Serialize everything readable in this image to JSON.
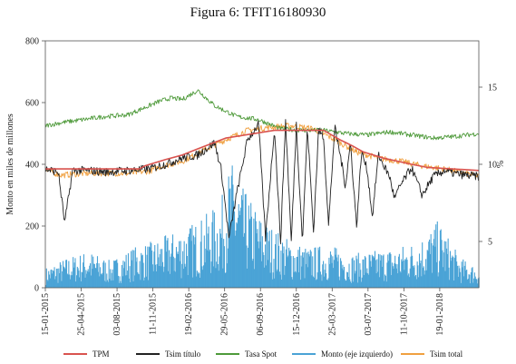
{
  "chart_data": {
    "type": "line",
    "title": "Figura 6: TFIT16180930",
    "ylabel_left": "Monto en miles de millones",
    "ylabel_right": "%",
    "ylim_left": [
      0,
      800
    ],
    "ylim_right": [
      2,
      18
    ],
    "yticks_left": [
      0,
      200,
      400,
      600,
      800
    ],
    "yticks_right": [
      5,
      10,
      15
    ],
    "x_tick_labels": [
      "15-01-2015",
      "25-04-2015",
      "03-08-2015",
      "11-11-2015",
      "19-02-2016",
      "29-05-2016",
      "06-09-2016",
      "15-12-2016",
      "25-03-2017",
      "03-07-2017",
      "11-10-2017",
      "19-01-2018"
    ],
    "x_range": [
      "15-01-2015",
      "08-05-2018"
    ],
    "legend_position": "bottom",
    "series": [
      {
        "name": "TPM",
        "axis": "right",
        "color": "#d9534f",
        "x": [
          "15-01-2015",
          "04-10-2015",
          "20-10-2015",
          "15-12-2015",
          "01-02-2016",
          "15-03-2016",
          "01-06-2016",
          "15-10-2016",
          "01-03-2017",
          "15-04-2017",
          "20-05-2017",
          "20-06-2017",
          "15-08-2017",
          "01-11-2017",
          "15-12-2017",
          "08-05-2018"
        ],
        "values": [
          9.7,
          9.7,
          9.9,
          10.3,
          10.6,
          11.0,
          11.7,
          12.2,
          12.2,
          11.6,
          11.2,
          10.8,
          10.4,
          10.0,
          9.8,
          9.6
        ]
      },
      {
        "name": "Tsim título",
        "axis": "left",
        "color": "#222222",
        "x": [
          "15-01-2015",
          "20-02-2015",
          "10-03-2015",
          "01-04-2015",
          "15-05-2015",
          "01-07-2015",
          "01-09-2015",
          "01-11-2015",
          "15-12-2015",
          "01-02-2016",
          "15-03-2016",
          "01-05-2016",
          "20-05-2016",
          "10-06-2016",
          "01-07-2016",
          "01-08-2016",
          "01-09-2016",
          "20-09-2016",
          "15-10-2016",
          "01-11-2016",
          "15-11-2016",
          "01-12-2016",
          "15-12-2016",
          "01-01-2017",
          "15-01-2017",
          "01-02-2017",
          "15-02-2017",
          "01-03-2017",
          "15-03-2017",
          "01-04-2017",
          "15-04-2017",
          "01-05-2017",
          "15-05-2017",
          "01-06-2017",
          "15-06-2017",
          "01-07-2017",
          "15-07-2017",
          "01-08-2017",
          "01-09-2017",
          "15-09-2017",
          "01-10-2017",
          "01-11-2017",
          "01-12-2017",
          "01-01-2018",
          "01-02-2018",
          "01-03-2018",
          "01-04-2018",
          "08-05-2018"
        ],
        "values": [
          385,
          375,
          210,
          380,
          380,
          375,
          380,
          385,
          400,
          420,
          430,
          470,
          380,
          160,
          300,
          480,
          530,
          160,
          520,
          150,
          540,
          150,
          530,
          150,
          520,
          180,
          510,
          490,
          200,
          520,
          440,
          330,
          470,
          200,
          440,
          380,
          230,
          430,
          360,
          290,
          330,
          390,
          300,
          360,
          380,
          370,
          365,
          360
        ]
      },
      {
        "name": "Tasa Spot",
        "axis": "right",
        "color": "#4e9a3a",
        "x": [
          "15-01-2015",
          "01-03-2015",
          "01-05-2015",
          "01-07-2015",
          "01-09-2015",
          "01-11-2015",
          "01-12-2015",
          "01-01-2016",
          "01-02-2016",
          "01-03-2016",
          "15-03-2016",
          "01-05-2016",
          "01-07-2016",
          "01-09-2016",
          "01-11-2016",
          "01-01-2017",
          "01-03-2017",
          "01-05-2017",
          "01-07-2017",
          "01-09-2017",
          "01-11-2017",
          "01-01-2018",
          "01-03-2018",
          "08-05-2018"
        ],
        "values": [
          12.5,
          12.7,
          12.9,
          13.1,
          13.2,
          13.8,
          14.1,
          14.3,
          14.2,
          14.6,
          14.8,
          13.8,
          13.1,
          12.9,
          12.3,
          12.2,
          12.2,
          12.0,
          11.9,
          12.1,
          11.9,
          11.7,
          11.8,
          12.0
        ]
      },
      {
        "name": "Monto (eje izquierdo)",
        "axis": "left",
        "type": "bar",
        "color": "#4aa3d6",
        "note": "Daily traded amount; envelope of typical heights",
        "x": [
          "15-01-2015",
          "15-03-2015",
          "15-05-2015",
          "15-07-2015",
          "15-09-2015",
          "15-11-2015",
          "15-01-2016",
          "15-03-2016",
          "15-05-2016",
          "15-06-2016",
          "15-07-2016",
          "15-09-2016",
          "15-11-2016",
          "15-01-2017",
          "15-03-2017",
          "15-05-2017",
          "15-07-2017",
          "15-09-2017",
          "15-11-2017",
          "15-01-2018",
          "15-03-2018",
          "08-05-2018"
        ],
        "values": [
          60,
          90,
          110,
          80,
          120,
          140,
          170,
          200,
          250,
          380,
          300,
          200,
          150,
          120,
          130,
          100,
          110,
          120,
          140,
          200,
          90,
          60
        ]
      },
      {
        "name": "Tsim total",
        "axis": "left",
        "color": "#f0a040",
        "x": [
          "15-01-2015",
          "01-03-2015",
          "01-05-2015",
          "01-07-2015",
          "01-09-2015",
          "01-11-2015",
          "01-12-2015",
          "01-02-2016",
          "01-04-2016",
          "01-06-2016",
          "01-08-2016",
          "01-10-2016",
          "01-12-2016",
          "01-02-2017",
          "01-04-2017",
          "01-06-2017",
          "01-08-2017",
          "01-10-2017",
          "01-12-2017",
          "01-02-2018",
          "01-04-2018",
          "08-05-2018"
        ],
        "values": [
          380,
          365,
          370,
          372,
          370,
          378,
          392,
          410,
          445,
          480,
          510,
          520,
          525,
          515,
          480,
          440,
          420,
          410,
          395,
          385,
          370,
          360
        ]
      }
    ]
  }
}
